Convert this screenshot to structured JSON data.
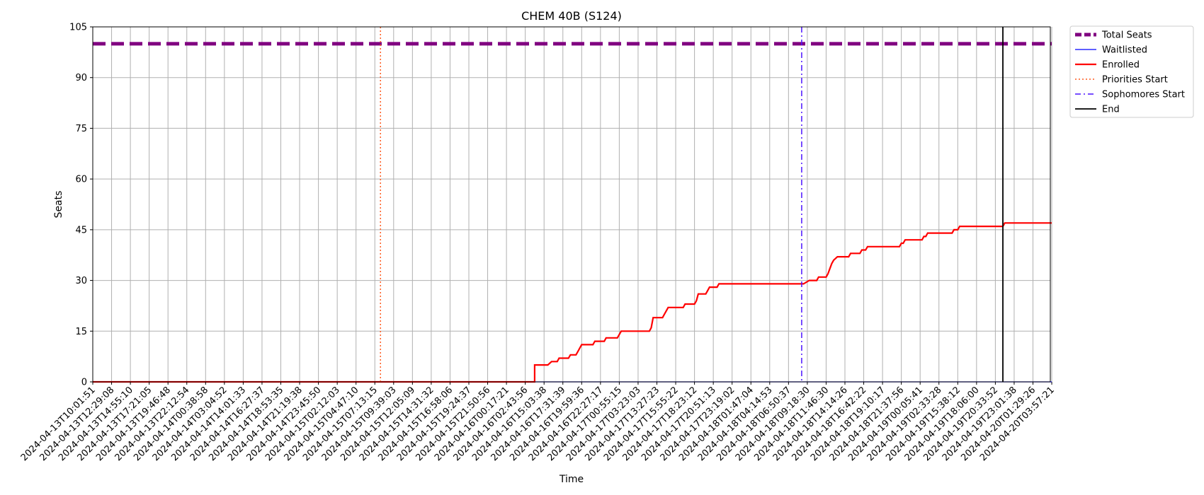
{
  "chart_data": {
    "type": "line",
    "title": "CHEM 40B (S124)",
    "xlabel": "Time",
    "ylabel": "Seats",
    "ylim": [
      0,
      105
    ],
    "yticks": [
      0,
      15,
      30,
      45,
      60,
      75,
      90,
      105
    ],
    "grid": true,
    "legend_position": "outside-top-right",
    "x_tick_labels": [
      "2024-04-13T10:01:51",
      "2024-04-13T12:29:08",
      "2024-04-13T14:55:10",
      "2024-04-13T17:21:05",
      "2024-04-13T19:46:48",
      "2024-04-13T22:12:54",
      "2024-04-14T00:38:58",
      "2024-04-14T03:04:52",
      "2024-04-14T14:01:33",
      "2024-04-14T16:27:37",
      "2024-04-14T18:53:35",
      "2024-04-14T21:19:38",
      "2024-04-14T23:45:50",
      "2024-04-15T02:12:03",
      "2024-04-15T04:47:10",
      "2024-04-15T07:13:15",
      "2024-04-15T09:39:03",
      "2024-04-15T12:05:09",
      "2024-04-15T14:31:32",
      "2024-04-15T16:58:06",
      "2024-04-15T19:24:37",
      "2024-04-15T21:50:56",
      "2024-04-16T00:17:21",
      "2024-04-16T02:43:56",
      "2024-04-16T15:03:38",
      "2024-04-16T17:31:39",
      "2024-04-16T19:59:36",
      "2024-04-16T22:27:17",
      "2024-04-17T00:55:15",
      "2024-04-17T03:23:03",
      "2024-04-17T13:27:23",
      "2024-04-17T15:55:22",
      "2024-04-17T18:23:12",
      "2024-04-17T20:51:13",
      "2024-04-17T23:19:02",
      "2024-04-18T01:47:04",
      "2024-04-18T04:14:53",
      "2024-04-18T06:50:37",
      "2024-04-18T09:18:30",
      "2024-04-18T11:46:30",
      "2024-04-18T14:14:26",
      "2024-04-18T16:42:22",
      "2024-04-18T19:10:17",
      "2024-04-18T21:37:56",
      "2024-04-19T00:05:41",
      "2024-04-19T02:33:28",
      "2024-04-19T15:38:12",
      "2024-04-19T18:06:00",
      "2024-04-19T20:33:52",
      "2024-04-19T23:01:38",
      "2024-04-20T01:29:26",
      "2024-04-20T03:57:21"
    ],
    "series": [
      {
        "name": "Total Seats",
        "color": "#800080",
        "style": "dashed-thick",
        "points": [
          [
            0,
            100
          ],
          [
            51,
            100
          ]
        ]
      },
      {
        "name": "Waitlisted",
        "color": "#0000ff",
        "style": "solid-thin",
        "points": [
          [
            0,
            0
          ],
          [
            51,
            0
          ]
        ]
      },
      {
        "name": "Enrolled",
        "color": "#ff0000",
        "style": "solid-thick",
        "points": [
          [
            0,
            0
          ],
          [
            23.5,
            0
          ],
          [
            23.5,
            5
          ],
          [
            24.2,
            5
          ],
          [
            24.4,
            6
          ],
          [
            24.7,
            6
          ],
          [
            24.8,
            7
          ],
          [
            25.3,
            7
          ],
          [
            25.4,
            8
          ],
          [
            25.7,
            8
          ],
          [
            25.8,
            9
          ],
          [
            26.0,
            11
          ],
          [
            26.6,
            11
          ],
          [
            26.7,
            12
          ],
          [
            27.2,
            12
          ],
          [
            27.3,
            13
          ],
          [
            27.9,
            13
          ],
          [
            28.0,
            14
          ],
          [
            28.1,
            15
          ],
          [
            29.6,
            15
          ],
          [
            29.7,
            16
          ],
          [
            29.8,
            19
          ],
          [
            30.3,
            19
          ],
          [
            30.4,
            20
          ],
          [
            30.5,
            21
          ],
          [
            30.6,
            22
          ],
          [
            31.4,
            22
          ],
          [
            31.5,
            23
          ],
          [
            32.0,
            23
          ],
          [
            32.1,
            24
          ],
          [
            32.2,
            26
          ],
          [
            32.6,
            26
          ],
          [
            32.7,
            27
          ],
          [
            32.8,
            28
          ],
          [
            33.2,
            28
          ],
          [
            33.3,
            29
          ],
          [
            37.8,
            29
          ],
          [
            38.1,
            30
          ],
          [
            38.5,
            30
          ],
          [
            38.6,
            31
          ],
          [
            39.0,
            31
          ],
          [
            39.1,
            32
          ],
          [
            39.3,
            35
          ],
          [
            39.4,
            36
          ],
          [
            39.6,
            37
          ],
          [
            40.2,
            37
          ],
          [
            40.3,
            38
          ],
          [
            40.8,
            38
          ],
          [
            40.9,
            39
          ],
          [
            41.1,
            39
          ],
          [
            41.2,
            40
          ],
          [
            42.9,
            40
          ],
          [
            43.0,
            41
          ],
          [
            43.1,
            41
          ],
          [
            43.2,
            42
          ],
          [
            44.1,
            42
          ],
          [
            44.2,
            43
          ],
          [
            44.3,
            43
          ],
          [
            44.4,
            44
          ],
          [
            45.7,
            44
          ],
          [
            45.8,
            45
          ],
          [
            46.0,
            45
          ],
          [
            46.1,
            46
          ],
          [
            48.4,
            46
          ],
          [
            48.5,
            47
          ],
          [
            51,
            47
          ]
        ]
      }
    ],
    "markers": [
      {
        "name": "Priorities Start",
        "x": 15.3,
        "color": "#ff5a1f",
        "style": "dotted"
      },
      {
        "name": "Sophomores Start",
        "x": 37.7,
        "color": "#4b14ff",
        "style": "dashdot"
      },
      {
        "name": "End",
        "x": 48.4,
        "color": "#000000",
        "style": "solid"
      }
    ],
    "legend_entries": [
      "Total Seats",
      "Waitlisted",
      "Enrolled",
      "Priorities Start",
      "Sophomores Start",
      "End"
    ]
  }
}
